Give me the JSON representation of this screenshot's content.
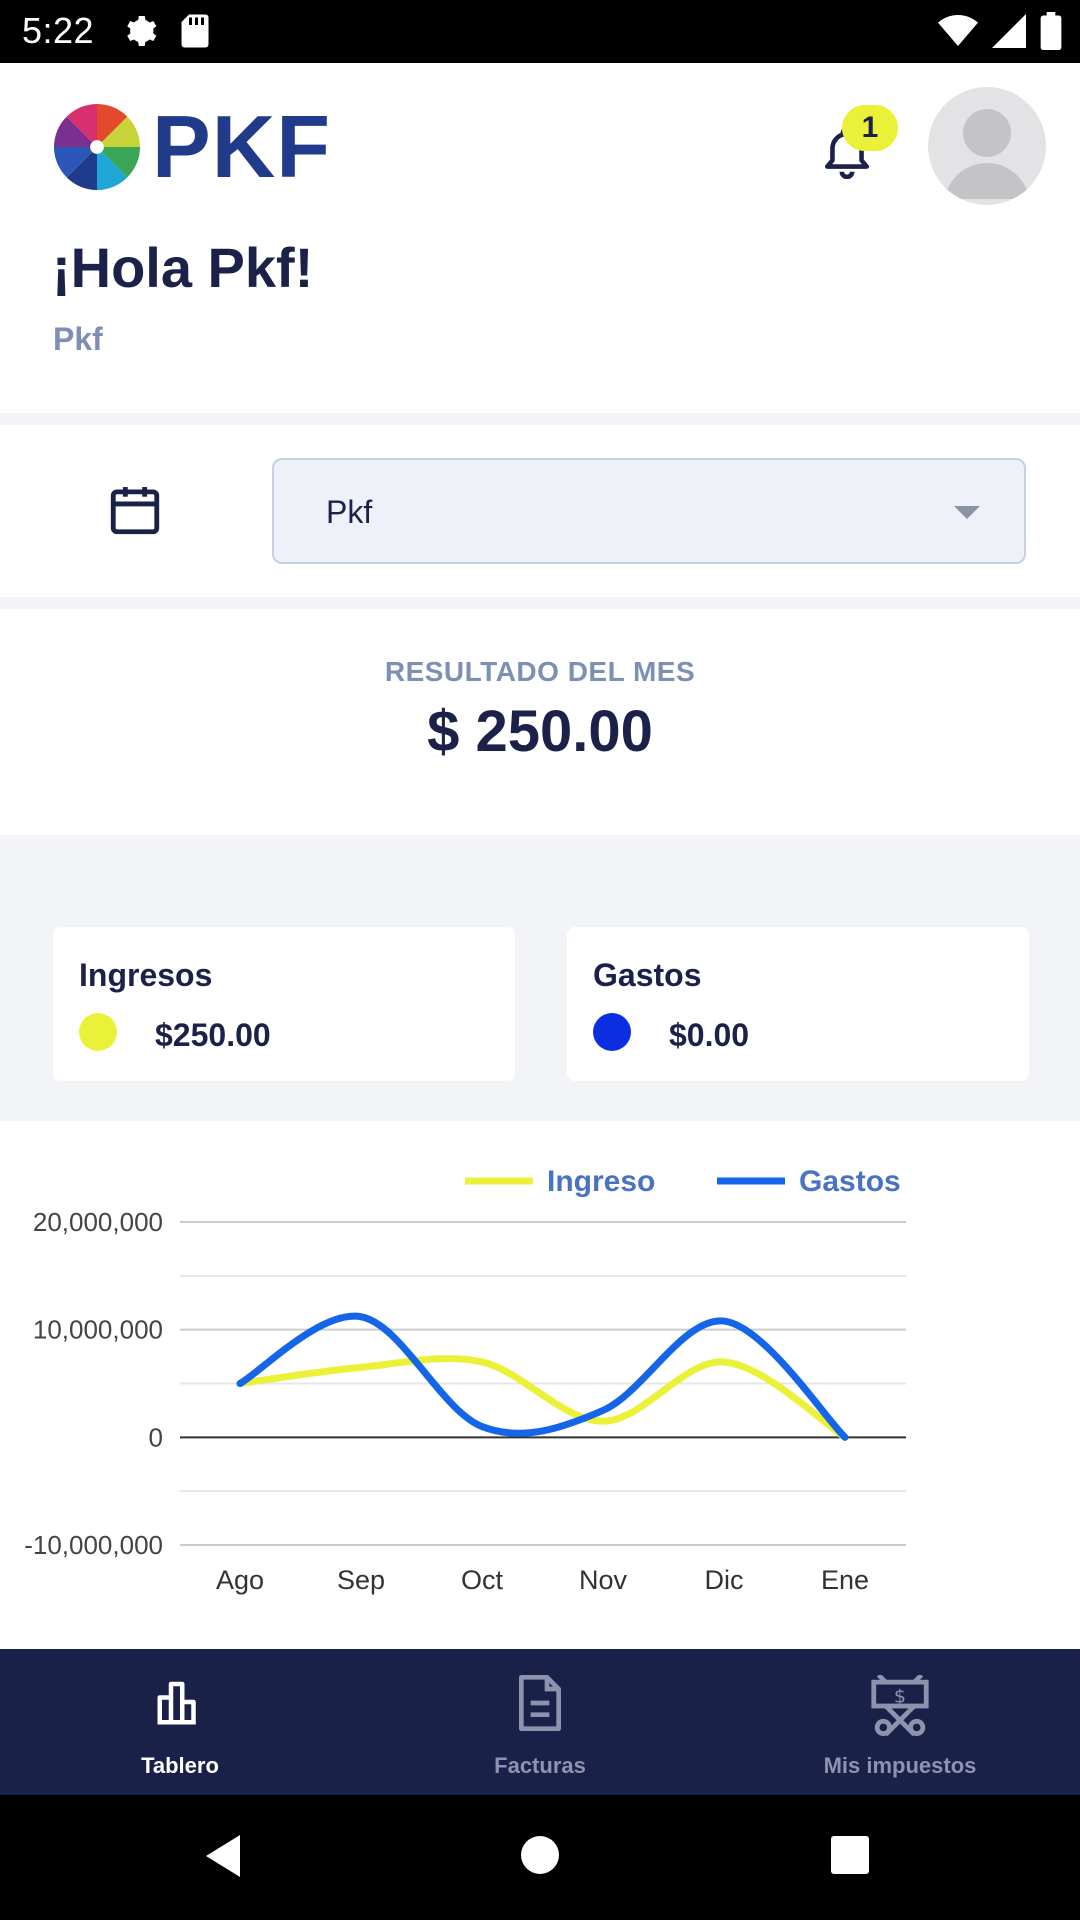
{
  "status_bar": {
    "time": "5:22",
    "left_icons": [
      "settings-icon",
      "sd-card-icon"
    ],
    "right_icons": [
      "wifi-icon",
      "signal-icon",
      "battery-icon"
    ]
  },
  "header": {
    "logo_text": "PKF",
    "notification_count": "1",
    "greeting": "¡Hola Pkf!",
    "subtitle": "Pkf"
  },
  "filter": {
    "selected_value": "Pkf"
  },
  "result": {
    "label": "RESULTADO DEL MES",
    "value": "$ 250.00"
  },
  "cards": {
    "income": {
      "title": "Ingresos",
      "amount": "$250.00",
      "color": "#eaf138"
    },
    "expenses": {
      "title": "Gastos",
      "amount": "$0.00",
      "color": "#0b2fe0"
    }
  },
  "chart_data": {
    "type": "line",
    "categories": [
      "Ago",
      "Sep",
      "Oct",
      "Nov",
      "Dic",
      "Ene"
    ],
    "series": [
      {
        "name": "Ingreso",
        "color": "#eaf138",
        "values": [
          5000000,
          6500000,
          7000000,
          1500000,
          7000000,
          0
        ]
      },
      {
        "name": "Gastos",
        "color": "#1565e8",
        "values": [
          5000000,
          11200000,
          1000000,
          2500000,
          10800000,
          0
        ]
      }
    ],
    "yticks": [
      "20,000,000",
      "10,000,000",
      "0",
      "-10,000,000"
    ],
    "ylim": [
      -10000000,
      20000000
    ],
    "grid": true,
    "legend": "top-right"
  },
  "bottom_nav": [
    {
      "label": "Tablero",
      "icon": "bar-chart-icon",
      "active": true
    },
    {
      "label": "Facturas",
      "icon": "document-icon",
      "active": false
    },
    {
      "label": "Mis impuestos",
      "icon": "tax-icon",
      "active": false
    }
  ],
  "colors": {
    "navy": "#1a2149",
    "accent_yellow": "#eaf138",
    "accent_blue": "#1565e8",
    "muted": "#7d8fb3"
  }
}
